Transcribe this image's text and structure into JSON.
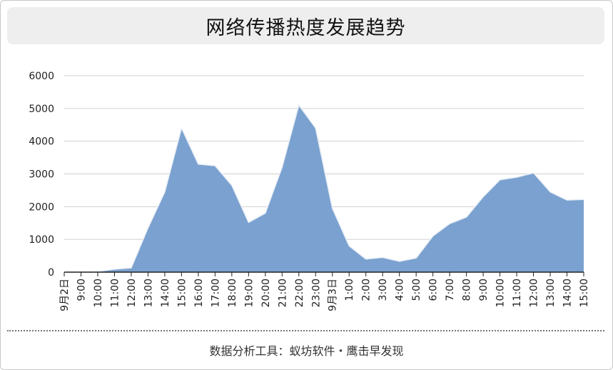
{
  "title": "网络传播热度发展趋势",
  "footer": "数据分析工具：蚁坊软件・鹰击早发现",
  "colors": {
    "area_fill": "#7aa1cf",
    "area_stroke": "#e8eef6",
    "grid": "#cfcfcf",
    "axis": "#222222",
    "title_bg": "#eeeeee"
  },
  "chart_data": {
    "type": "area",
    "title": "网络传播热度发展趋势",
    "xlabel": "",
    "ylabel": "",
    "ylim": [
      0,
      6000
    ],
    "yticks": [
      0,
      1000,
      2000,
      3000,
      4000,
      5000,
      6000
    ],
    "grid": true,
    "categories": [
      "9月2日",
      "9:00",
      "10:00",
      "11:00",
      "12:00",
      "13:00",
      "14:00",
      "15:00",
      "16:00",
      "17:00",
      "18:00",
      "19:00",
      "20:00",
      "21:00",
      "22:00",
      "23:00",
      "9月3日",
      "1:00",
      "2:00",
      "3:00",
      "4:00",
      "5:00",
      "6:00",
      "7:00",
      "8:00",
      "9:00",
      "10:00",
      "11:00",
      "12:00",
      "13:00",
      "14:00",
      "15:00"
    ],
    "values": [
      0,
      0,
      20,
      90,
      130,
      1350,
      2450,
      4400,
      3300,
      3250,
      2650,
      1520,
      1800,
      3200,
      5100,
      4400,
      1950,
      800,
      400,
      450,
      330,
      430,
      1100,
      1480,
      1680,
      2300,
      2820,
      2900,
      3030,
      2450,
      2200,
      2220
    ]
  }
}
